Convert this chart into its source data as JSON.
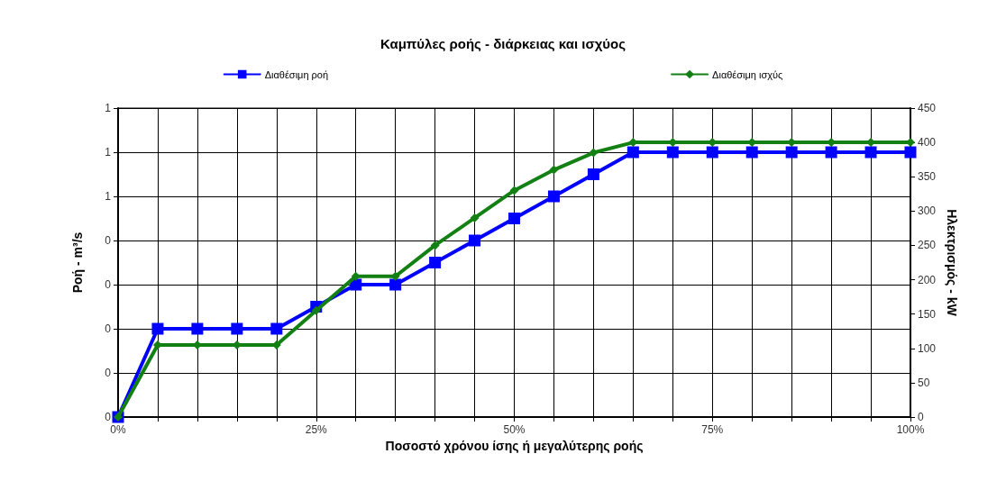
{
  "chart_data": {
    "type": "line",
    "title": "Καμπύλες ροής - διάρκειας και ισχύος",
    "xlabel": "Ποσοστό χρόνου ίσης ή μεγαλύτερης ροής",
    "ylabel": "Ροή - m³/s",
    "y2label": "Ηλεκτρισμός - kW",
    "x": [
      0,
      5,
      10,
      15,
      20,
      25,
      30,
      35,
      40,
      45,
      50,
      55,
      60,
      65,
      70,
      75,
      80,
      85,
      90,
      95,
      100
    ],
    "series": [
      {
        "name": "Διαθέσιμη ροή",
        "color": "#0000ff",
        "marker": "square",
        "values": [
          0,
          0.2,
          0.2,
          0.2,
          0.2,
          0.25,
          0.3,
          0.3,
          0.35,
          0.4,
          0.45,
          0.5,
          0.55,
          0.6,
          0.6,
          0.6,
          0.6,
          0.6,
          0.6,
          0.6,
          0.6
        ]
      },
      {
        "name": "Διαθέσιμη ισχύς",
        "color": "#138013",
        "marker": "diamond",
        "axis": "y2",
        "values": [
          0,
          105,
          105,
          105,
          105,
          155,
          205,
          205,
          250,
          290,
          330,
          360,
          385,
          400,
          400,
          400,
          400,
          400,
          400,
          400,
          400
        ]
      }
    ],
    "xlim": [
      0,
      100
    ],
    "xticks": [
      {
        "value": 0,
        "label": "0%"
      },
      {
        "value": 5,
        "label": null
      },
      {
        "value": 10,
        "label": null
      },
      {
        "value": 15,
        "label": null
      },
      {
        "value": 20,
        "label": null
      },
      {
        "value": 25,
        "label": "25%"
      },
      {
        "value": 30,
        "label": null
      },
      {
        "value": 35,
        "label": null
      },
      {
        "value": 40,
        "label": null
      },
      {
        "value": 45,
        "label": null
      },
      {
        "value": 50,
        "label": "50%"
      },
      {
        "value": 55,
        "label": null
      },
      {
        "value": 60,
        "label": null
      },
      {
        "value": 65,
        "label": null
      },
      {
        "value": 70,
        "label": null
      },
      {
        "value": 75,
        "label": "75%"
      },
      {
        "value": 80,
        "label": null
      },
      {
        "value": 85,
        "label": null
      },
      {
        "value": 90,
        "label": null
      },
      {
        "value": 95,
        "label": null
      },
      {
        "value": 100,
        "label": "100%"
      }
    ],
    "ylim": [
      0,
      0.7
    ],
    "yticks": [
      {
        "value": 0,
        "label": "0"
      },
      {
        "value": 0.1,
        "label": "0"
      },
      {
        "value": 0.2,
        "label": "0"
      },
      {
        "value": 0.3,
        "label": "0"
      },
      {
        "value": 0.4,
        "label": "0"
      },
      {
        "value": 0.5,
        "label": "1"
      },
      {
        "value": 0.6,
        "label": "1"
      },
      {
        "value": 0.7,
        "label": "1"
      }
    ],
    "y2lim": [
      0,
      450
    ],
    "y2ticks": [
      0,
      50,
      100,
      150,
      200,
      250,
      300,
      350,
      400,
      450
    ],
    "grid": true,
    "legend": "top",
    "line_style": "solid"
  }
}
